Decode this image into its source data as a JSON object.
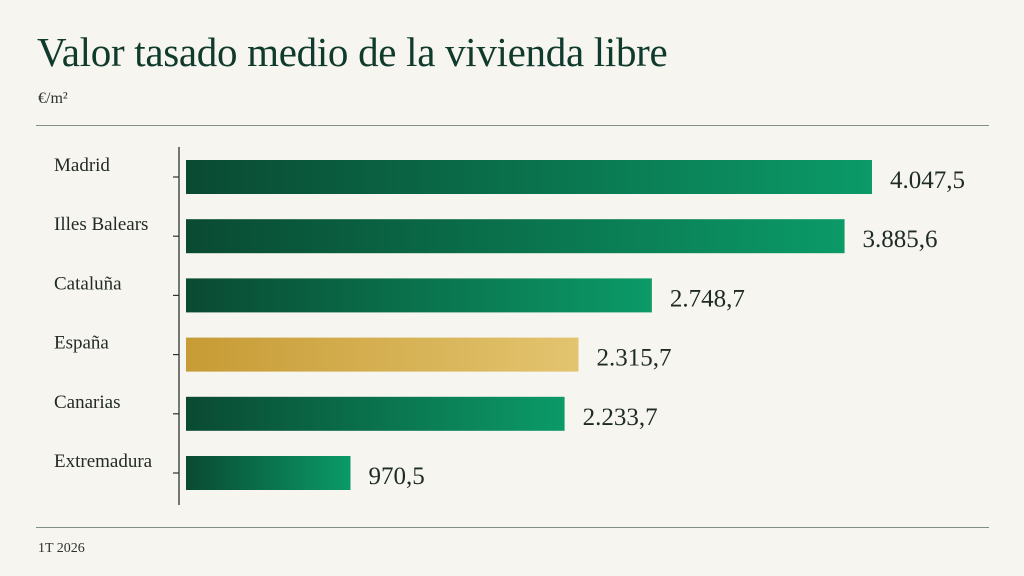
{
  "title": "Valor tasado medio de la vivienda libre",
  "unit": "€/m²",
  "footer": "1T 2026",
  "colors": {
    "green_dark": "#0a4a32",
    "green_light": "#0b9a68",
    "gold_dark": "#c79b35",
    "gold_light": "#e3c46f",
    "rule": "#7f8f88",
    "background": "#f7f5f0"
  },
  "chart_data": {
    "type": "bar",
    "orientation": "horizontal",
    "categories": [
      "Madrid",
      "Illes Balears",
      "Cataluña",
      "España",
      "Canarias",
      "Extremadura"
    ],
    "values": [
      4047.5,
      3885.6,
      2748.7,
      2315.7,
      2233.7,
      970.5
    ],
    "value_labels": [
      "4.047,5",
      "3.885,6",
      "2.748,7",
      "2.315,7",
      "2.233,7",
      "970,5"
    ],
    "highlight": "España",
    "title": "Valor tasado medio de la vivienda libre",
    "xlabel": "",
    "ylabel": "€/m²",
    "grid": false,
    "legend": "none"
  }
}
